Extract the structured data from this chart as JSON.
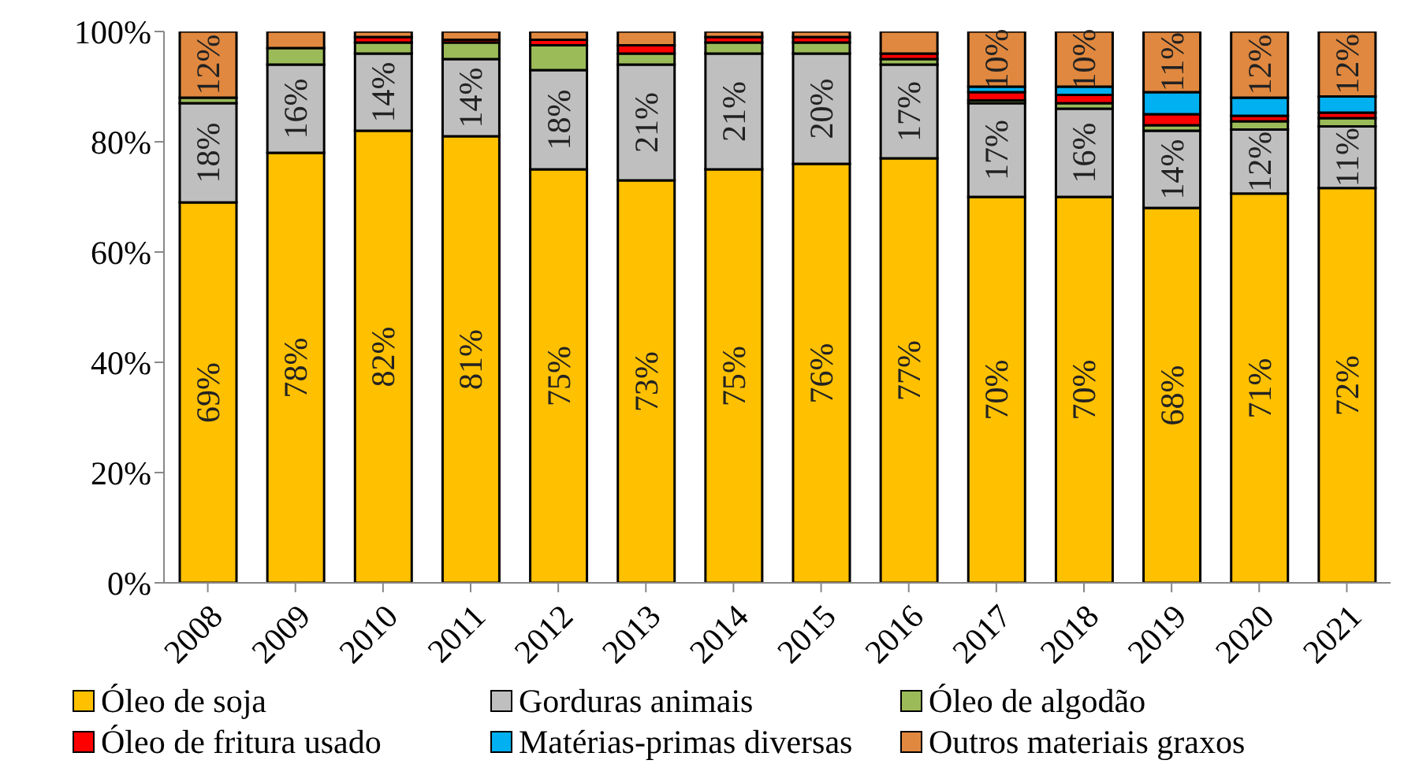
{
  "chart_data": {
    "type": "bar",
    "stacked": true,
    "categories": [
      "2008",
      "2009",
      "2010",
      "2011",
      "2012",
      "2013",
      "2014",
      "2015",
      "2016",
      "2017",
      "2018",
      "2019",
      "2020",
      "2021"
    ],
    "series": [
      {
        "name": "Óleo de soja",
        "color": "#ffc000",
        "values": [
          69,
          78,
          82,
          81,
          75,
          73,
          75,
          76,
          77,
          70,
          70,
          68,
          70.6,
          71.6
        ],
        "value_labels": [
          "69%",
          "78%",
          "82%",
          "81%",
          "75%",
          "73%",
          "75%",
          "76%",
          "77%",
          "70%",
          "70%",
          "68%",
          "71%",
          "72%"
        ]
      },
      {
        "name": "Gorduras animais",
        "color": "#bfbfbf",
        "values": [
          18,
          16,
          14,
          14,
          18,
          21,
          21,
          20,
          17,
          17,
          16,
          14,
          11.6,
          11.2
        ],
        "value_labels": [
          "18%",
          "16%",
          "14%",
          "14%",
          "18%",
          "21%",
          "21%",
          "20%",
          "17%",
          "17%",
          "16%",
          "14%",
          "12%",
          "11%"
        ]
      },
      {
        "name": "Óleo de algodão",
        "color": "#9bbb59",
        "values": [
          1,
          3,
          2,
          3,
          4.5,
          2,
          2,
          2,
          1,
          0.5,
          1,
          1,
          1.5,
          1.5
        ]
      },
      {
        "name": "Óleo de fritura usado",
        "color": "#ff0000",
        "values": [
          0,
          0,
          1,
          0.5,
          1,
          1.5,
          1,
          1,
          1,
          1.5,
          1.5,
          2,
          1,
          1
        ]
      },
      {
        "name": "Matérias-primas diversas",
        "color": "#00b0f0",
        "values": [
          0,
          0,
          0,
          0,
          0,
          0,
          0,
          0,
          0,
          1,
          1.5,
          4,
          3.3,
          2.9
        ]
      },
      {
        "name": "Outros materiais graxos",
        "color": "#e0883f",
        "values": [
          12,
          3,
          1,
          1.5,
          1.5,
          2.5,
          1,
          1,
          4,
          10,
          10,
          11,
          12,
          11.8
        ],
        "value_labels": [
          "12%",
          null,
          null,
          null,
          null,
          null,
          null,
          null,
          null,
          "10%",
          "10%",
          "11%",
          "12%",
          "12%"
        ]
      }
    ],
    "ylim": [
      0,
      100
    ],
    "yticks": [
      {
        "value": 0,
        "label": "0%"
      },
      {
        "value": 20,
        "label": "20%"
      },
      {
        "value": 40,
        "label": "40%"
      },
      {
        "value": 60,
        "label": "60%"
      },
      {
        "value": 80,
        "label": "80%"
      },
      {
        "value": 100,
        "label": "100%"
      }
    ],
    "grid": false,
    "legend": "bottom"
  }
}
